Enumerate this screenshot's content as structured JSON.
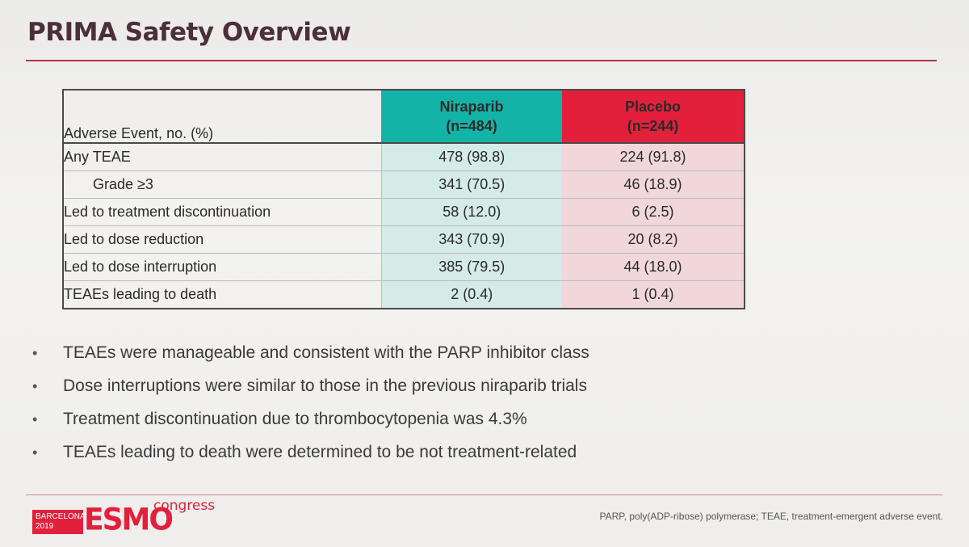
{
  "title": "PRIMA Safety Overview",
  "table": {
    "header": {
      "label": "Adverse Event, no. (%)",
      "niraparib": {
        "name": "Niraparib",
        "n": "(n=484)"
      },
      "placebo": {
        "name": "Placebo",
        "n": "(n=244)"
      }
    },
    "rows": [
      {
        "label": "Any TEAE",
        "niraparib": "478 (98.8)",
        "placebo": "224 (91.8)"
      },
      {
        "label": "Grade ≥3",
        "niraparib": "341 (70.5)",
        "placebo": "46 (18.9)"
      },
      {
        "label": "Led to treatment discontinuation",
        "niraparib": "58 (12.0)",
        "placebo": "6 (2.5)"
      },
      {
        "label": "Led to dose reduction",
        "niraparib": "343 (70.9)",
        "placebo": "20 (8.2)"
      },
      {
        "label": "Led to dose interruption",
        "niraparib": "385 (79.5)",
        "placebo": "44 (18.0)"
      },
      {
        "label": "TEAEs leading to death",
        "niraparib": "2 (0.4)",
        "placebo": "1 (0.4)"
      }
    ]
  },
  "bullets": [
    "TEAEs were manageable and consistent with the PARP inhibitor class",
    "Dose interruptions were similar to those in the previous niraparib trials",
    "Treatment discontinuation due to thrombocytopenia was 4.3%",
    "TEAEs leading to death were determined to be not treatment-related"
  ],
  "bullet_symbol": "•",
  "logo": {
    "city": "BARCELONA",
    "year": "2019",
    "brand": "ESMO",
    "suffix": "congress"
  },
  "footnote": "PARP, poly(ADP-ribose) polymerase; TEAE, treatment-emergent adverse event.",
  "colors": {
    "niraparib": "#13b3a8",
    "placebo": "#e3203c",
    "title": "#4b2f3a"
  }
}
